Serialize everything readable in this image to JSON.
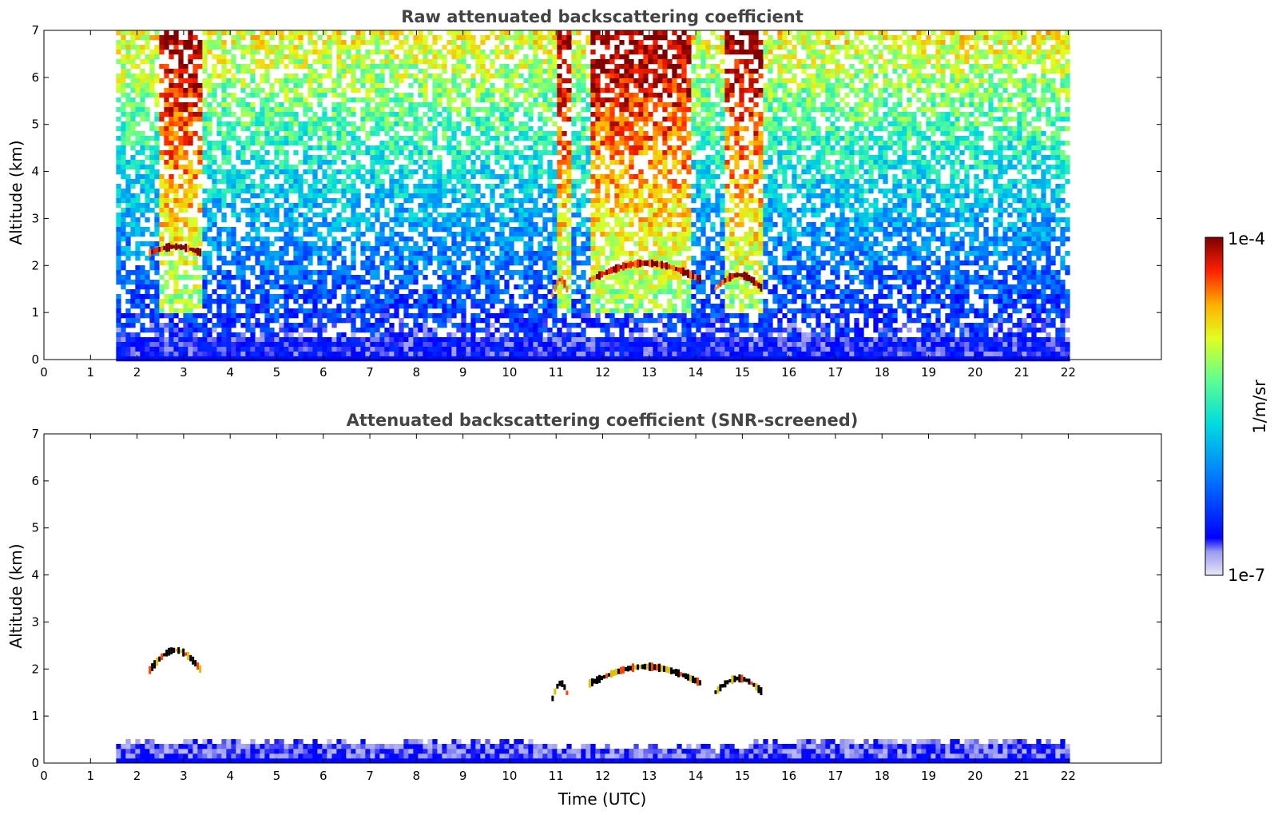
{
  "figure": {
    "colorbar": {
      "max_label": "1e-4",
      "min_label": "1e-7",
      "unit_label": "1/m/sr",
      "colormap": "jet",
      "scale": "log",
      "range": [
        1e-07,
        0.0001
      ]
    },
    "panels": [
      {
        "title": "Raw attenuated backscattering coefficient",
        "ylabel": "Altitude (km)",
        "xlabel": ""
      },
      {
        "title": "Attenuated backscattering coefficient (SNR-screened)",
        "ylabel": "Altitude (km)",
        "xlabel": "Time (UTC)"
      }
    ]
  },
  "chart_data": [
    {
      "type": "heatmap",
      "title": "Raw attenuated backscattering coefficient",
      "xlabel": "",
      "ylabel": "Altitude (km)",
      "xlim": [
        0,
        24
      ],
      "ylim": [
        0,
        7
      ],
      "xticks": [
        0,
        1,
        2,
        3,
        4,
        5,
        6,
        7,
        8,
        9,
        10,
        11,
        12,
        13,
        14,
        15,
        16,
        17,
        18,
        19,
        20,
        21,
        22
      ],
      "yticks": [
        0,
        1,
        2,
        3,
        4,
        5,
        6,
        7
      ],
      "data_time_range": [
        1.55,
        22.0
      ],
      "cloud_layers": [
        {
          "time": [
            2.25,
            3.35
          ],
          "altitude_km": [
            2.2,
            2.4
          ]
        },
        {
          "time": [
            10.9,
            11.25
          ],
          "altitude_km": [
            1.2,
            1.7
          ]
        },
        {
          "time": [
            11.7,
            14.1
          ],
          "altitude_km": [
            1.5,
            2.05
          ]
        },
        {
          "time": [
            14.4,
            15.4
          ],
          "altitude_km": [
            1.35,
            1.8
          ]
        }
      ],
      "high_signal_columns": [
        [
          2.4,
          3.3
        ],
        [
          10.95,
          11.25
        ],
        [
          11.7,
          13.9
        ],
        [
          14.55,
          15.4
        ]
      ]
    },
    {
      "type": "heatmap",
      "title": "Attenuated backscattering coefficient (SNR-screened)",
      "xlabel": "Time (UTC)",
      "ylabel": "Altitude (km)",
      "xlim": [
        0,
        24
      ],
      "ylim": [
        0,
        7
      ],
      "xticks": [
        0,
        1,
        2,
        3,
        4,
        5,
        6,
        7,
        8,
        9,
        10,
        11,
        12,
        13,
        14,
        15,
        16,
        17,
        18,
        19,
        20,
        21,
        22
      ],
      "yticks": [
        0,
        1,
        2,
        3,
        4,
        5,
        6,
        7
      ],
      "data_time_range": [
        1.55,
        22.0
      ],
      "boundary_layer_top_km": 0.55,
      "cloud_layers": [
        {
          "time": [
            2.25,
            3.35
          ],
          "altitude_km": [
            1.75,
            2.4
          ]
        },
        {
          "time": [
            10.9,
            11.25
          ],
          "altitude_km": [
            1.2,
            1.7
          ]
        },
        {
          "time": [
            11.7,
            14.1
          ],
          "altitude_km": [
            1.5,
            2.05
          ]
        },
        {
          "time": [
            14.4,
            15.4
          ],
          "altitude_km": [
            1.35,
            1.8
          ]
        }
      ]
    }
  ]
}
